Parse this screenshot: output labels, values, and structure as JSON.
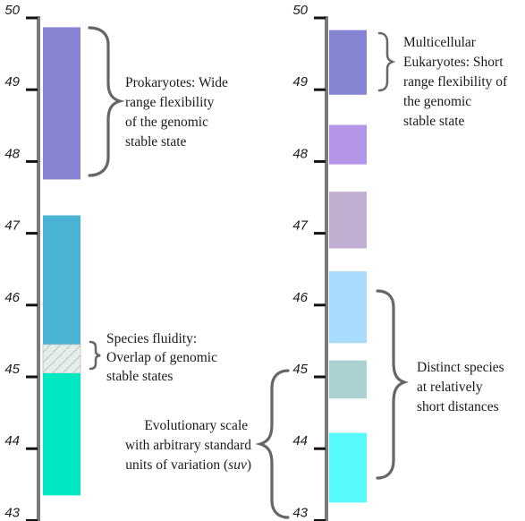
{
  "left_axis": {
    "ticks": [
      "50",
      "49",
      "48",
      "47",
      "46",
      "45",
      "44",
      "43"
    ]
  },
  "right_axis": {
    "ticks": [
      "50",
      "49",
      "48",
      "47",
      "46",
      "45",
      "44",
      "43"
    ]
  },
  "left_column": {
    "bars": [
      {
        "name": "prokaryote-range-bar",
        "from": 47.75,
        "to": 49.87,
        "color": "#8785d3"
      },
      {
        "name": "species-a-bar",
        "from": 45.45,
        "to": 47.25,
        "color": "#4ab4d4"
      },
      {
        "name": "overlap-bar",
        "from": 45.05,
        "to": 45.45,
        "color": "#e4ece8"
      },
      {
        "name": "species-b-bar",
        "from": 43.35,
        "to": 45.05,
        "color": "#00e7c3"
      }
    ]
  },
  "right_column": {
    "bars": [
      {
        "name": "eukaryote-bar-1",
        "from": 48.93,
        "to": 49.83,
        "color": "#8585d3"
      },
      {
        "name": "eukaryote-bar-2",
        "from": 47.96,
        "to": 48.51,
        "color": "#b396e8"
      },
      {
        "name": "eukaryote-bar-3",
        "from": 46.79,
        "to": 47.58,
        "color": "#c2aed0"
      },
      {
        "name": "eukaryote-bar-4",
        "from": 45.47,
        "to": 46.47,
        "color": "#a9dbfc"
      },
      {
        "name": "eukaryote-bar-5",
        "from": 44.7,
        "to": 45.23,
        "color": "#abd1d3"
      },
      {
        "name": "eukaryote-bar-6",
        "from": 43.25,
        "to": 44.22,
        "color": "#59fafb"
      }
    ]
  },
  "annotations": {
    "prokaryotes": [
      "Prokaryotes: Wide",
      "range flexibility",
      "of the genomic",
      "stable state"
    ],
    "species_fluidity": [
      "Species fluidity:",
      "Overlap of genomic",
      "stable states"
    ],
    "evolutionary_scale": [
      "Evolutionary scale",
      "with arbitrary standard",
      "units of variation ("
    ],
    "evolutionary_scale_unit": "suv",
    "evolutionary_scale_end": ")",
    "eukaryotes": [
      "Multicellular",
      "Eukaryotes: Short",
      "range flexibility of",
      "the genomic",
      "stable state"
    ],
    "distinct_species": [
      "Distinct species",
      "at relatively",
      "short distances"
    ]
  },
  "colors": {
    "axis": "#7a7a7a",
    "tick": "#111111",
    "brace": "#666666",
    "hatch": "#9aa8a4"
  }
}
